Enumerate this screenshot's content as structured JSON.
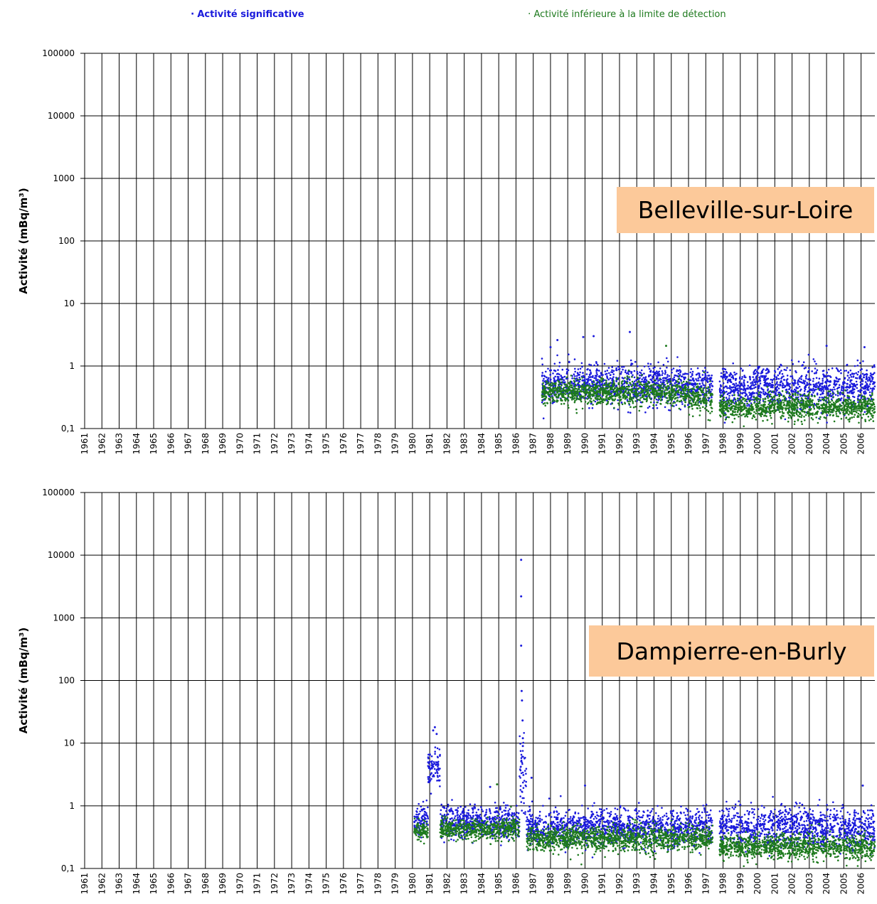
{
  "legend": {
    "significant": "Activité significative",
    "below_limit": "Activité inférieure à la limite de détection",
    "significant_color": "#1a1adc",
    "below_limit_color": "#1e7a1e"
  },
  "chart_data": [
    {
      "type": "scatter",
      "title": "Belleville-sur-Loire",
      "ylabel": "Activité (mBq/m³)",
      "ylog": true,
      "ylim": [
        0.1,
        100000
      ],
      "yticks": [
        "0,1",
        "1",
        "10",
        "100",
        "1000",
        "10000",
        "100000"
      ],
      "xlim": [
        1961,
        2006.8
      ],
      "xticks": [
        "1961",
        "1962",
        "1963",
        "1964",
        "1965",
        "1966",
        "1967",
        "1968",
        "1969",
        "1970",
        "1971",
        "1972",
        "1973",
        "1974",
        "1975",
        "1976",
        "1977",
        "1978",
        "1979",
        "1980",
        "1981",
        "1982",
        "1983",
        "1984",
        "1985",
        "1986",
        "1987",
        "1988",
        "1989",
        "1990",
        "1991",
        "1992",
        "1993",
        "1994",
        "1995",
        "1996",
        "1997",
        "1998",
        "1999",
        "2000",
        "2001",
        "2002",
        "2003",
        "2004",
        "2005",
        "2006"
      ],
      "grid": true,
      "series": [
        {
          "name": "Activité significative",
          "color": "#1a1adc",
          "segments": [
            {
              "x0": 1987.5,
              "x1": 1996.0,
              "median": 0.5,
              "spread": 0.55
            },
            {
              "x0": 1996.0,
              "x1": 1997.4,
              "median": 0.45,
              "spread": 0.5
            },
            {
              "x0": 1997.8,
              "x1": 2006.8,
              "median": 0.45,
              "spread": 0.6
            }
          ],
          "outliers": [
            [
              1988.4,
              2.6
            ],
            [
              1989.9,
              2.9
            ],
            [
              1990.5,
              3.0
            ],
            [
              1992.6,
              3.5
            ],
            [
              1988.0,
              2.0
            ],
            [
              2004.0,
              2.1
            ],
            [
              2006.2,
              2.0
            ]
          ]
        },
        {
          "name": "Activité inférieure à la limite de détection",
          "color": "#1e7a1e",
          "segments": [
            {
              "x0": 1987.5,
              "x1": 1996.0,
              "median": 0.38,
              "spread": 0.35
            },
            {
              "x0": 1996.0,
              "x1": 1997.4,
              "median": 0.3,
              "spread": 0.4
            },
            {
              "x0": 1997.8,
              "x1": 2006.8,
              "median": 0.22,
              "spread": 0.35
            }
          ],
          "outliers": [
            [
              1994.7,
              2.1
            ]
          ]
        }
      ]
    },
    {
      "type": "scatter",
      "title": "Dampierre-en-Burly",
      "ylabel": "Activité (mBq/m³)",
      "ylog": true,
      "ylim": [
        0.1,
        100000
      ],
      "yticks": [
        "0,1",
        "1",
        "10",
        "100",
        "1000",
        "10000",
        "100000"
      ],
      "xlim": [
        1961,
        2006.8
      ],
      "xticks": [
        "1961",
        "1962",
        "1963",
        "1964",
        "1965",
        "1966",
        "1967",
        "1968",
        "1969",
        "1970",
        "1971",
        "1972",
        "1973",
        "1974",
        "1975",
        "1976",
        "1977",
        "1978",
        "1979",
        "1980",
        "1981",
        "1982",
        "1983",
        "1984",
        "1985",
        "1986",
        "1987",
        "1988",
        "1989",
        "1990",
        "1991",
        "1992",
        "1993",
        "1994",
        "1995",
        "1996",
        "1997",
        "1998",
        "1999",
        "2000",
        "2001",
        "2002",
        "2003",
        "2004",
        "2005",
        "2006"
      ],
      "grid": true,
      "series": [
        {
          "name": "Activité significative",
          "color": "#1a1adc",
          "segments": [
            {
              "x0": 1980.1,
              "x1": 1980.9,
              "median": 0.6,
              "spread": 0.4
            },
            {
              "x0": 1980.9,
              "x1": 1981.6,
              "median": 4.0,
              "spread": 0.6
            },
            {
              "x0": 1981.6,
              "x1": 1986.2,
              "median": 0.55,
              "spread": 0.45
            },
            {
              "x0": 1986.2,
              "x1": 1986.6,
              "median": 3.0,
              "spread": 1.2
            },
            {
              "x0": 1986.6,
              "x1": 1997.4,
              "median": 0.45,
              "spread": 0.5
            },
            {
              "x0": 1997.8,
              "x1": 2006.8,
              "median": 0.45,
              "spread": 0.55
            }
          ],
          "outliers": [
            [
              1986.3,
              8400
            ],
            [
              1986.3,
              2200
            ],
            [
              1986.3,
              360
            ],
            [
              1986.33,
              68
            ],
            [
              1986.35,
              48
            ],
            [
              1986.38,
              23
            ],
            [
              1986.4,
              12
            ],
            [
              1986.4,
              9
            ],
            [
              1981.3,
              18
            ],
            [
              1981.2,
              16
            ],
            [
              1981.4,
              14
            ],
            [
              1984.5,
              2.0
            ],
            [
              1986.9,
              2.8
            ],
            [
              1990.0,
              2.1
            ],
            [
              2006.1,
              2.1
            ]
          ]
        },
        {
          "name": "Activité inférieure à la limite de détection",
          "color": "#1e7a1e",
          "segments": [
            {
              "x0": 1980.1,
              "x1": 1980.9,
              "median": 0.4,
              "spread": 0.25
            },
            {
              "x0": 1981.6,
              "x1": 1986.2,
              "median": 0.42,
              "spread": 0.3
            },
            {
              "x0": 1986.6,
              "x1": 1997.4,
              "median": 0.3,
              "spread": 0.35
            },
            {
              "x0": 1997.8,
              "x1": 2006.8,
              "median": 0.22,
              "spread": 0.35
            }
          ],
          "outliers": [
            [
              1984.9,
              2.2
            ]
          ]
        }
      ]
    }
  ]
}
